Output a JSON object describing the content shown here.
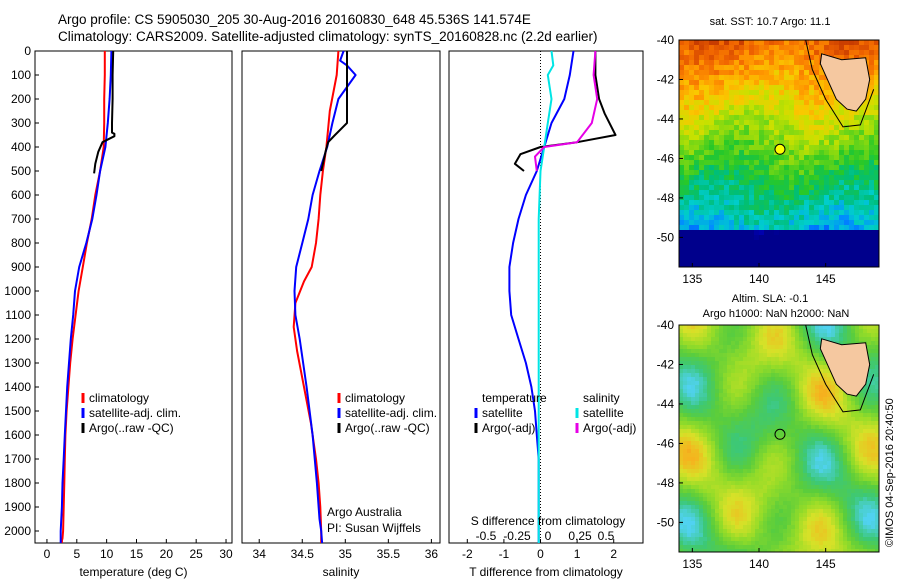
{
  "header": {
    "line1": "Argo profile: CS 5905030_205 30-Aug-2016 20160830_648 45.536S 141.574E",
    "line2": "Climatology: CARS2009. Satellite-adjusted climatology: synTS_20160828.nc (2.2d earlier)"
  },
  "credit": "©IMOS 04-Sep-2016 20:40:50",
  "colors": {
    "climatology": "#ff0000",
    "satellite": "#0000ff",
    "argo": "#000000",
    "salinity_satellite": "#00e5e5",
    "salinity_argo": "#e600e6",
    "land": "#f5c8a0"
  },
  "chart_data": [
    {
      "id": "temperature",
      "type": "line",
      "xlabel": "temperature (deg C)",
      "ylabel": "",
      "xlim": [
        -2,
        31
      ],
      "ylim": [
        2050,
        0
      ],
      "xticks": [
        0,
        5,
        10,
        15,
        20,
        25,
        30
      ],
      "yticks": [
        0,
        100,
        200,
        300,
        400,
        500,
        600,
        700,
        800,
        900,
        1000,
        1100,
        1200,
        1300,
        1400,
        1500,
        1600,
        1700,
        1800,
        1900,
        2000
      ],
      "legend": [
        "climatology",
        "satellite-adj. clim.",
        "Argo(..raw -QC)"
      ],
      "legend_loc": "lower-center",
      "series": [
        {
          "name": "climatology",
          "color": "#ff0000",
          "x": [
            9.7,
            9.7,
            9.6,
            9.6,
            9.5,
            8.9,
            8.1,
            7.5,
            6.7,
            6.0,
            5.3,
            4.8,
            4.3,
            3.9,
            3.6,
            3.3,
            3.1,
            3.0,
            2.9,
            2.8,
            2.7,
            2.6,
            2.5,
            2.5
          ],
          "y": [
            0,
            100,
            200,
            300,
            400,
            500,
            600,
            700,
            800,
            900,
            1000,
            1100,
            1200,
            1300,
            1400,
            1500,
            1600,
            1700,
            1800,
            1900,
            2000,
            2030,
            2040,
            2050
          ]
        },
        {
          "name": "satellite-adj. clim.",
          "color": "#0000ff",
          "x": [
            10.8,
            10.7,
            10.5,
            10.2,
            9.8,
            8.9,
            8.3,
            7.6,
            6.6,
            5.4,
            4.7,
            4.4,
            4.0,
            3.7,
            3.4,
            3.2,
            3.0,
            2.8,
            2.6,
            2.5,
            2.3,
            2.3
          ],
          "y": [
            0,
            100,
            200,
            300,
            400,
            500,
            600,
            700,
            800,
            900,
            1000,
            1100,
            1200,
            1300,
            1400,
            1500,
            1600,
            1700,
            1800,
            1900,
            2000,
            2050
          ]
        },
        {
          "name": "Argo(..raw -QC)",
          "color": "#000000",
          "x": [
            11.1,
            11.0,
            11.0,
            10.9,
            10.9,
            11.3,
            11.3,
            9.3,
            8.6,
            8.1,
            7.9
          ],
          "y": [
            0,
            100,
            200,
            300,
            340,
            345,
            355,
            380,
            420,
            470,
            510
          ]
        }
      ],
      "annotations": []
    },
    {
      "id": "salinity",
      "type": "line",
      "xlabel": "salinity",
      "ylabel": "",
      "xlim": [
        33.8,
        36.1
      ],
      "ylim": [
        2050,
        0
      ],
      "xticks": [
        34,
        34.5,
        35,
        35.5,
        36
      ],
      "legend": [
        "climatology",
        "satellite-adj. clim.",
        "Argo(..raw -QC)"
      ],
      "legend_loc": "lower-right",
      "series": [
        {
          "name": "climatology",
          "color": "#ff0000",
          "x": [
            34.92,
            34.9,
            34.82,
            34.78,
            34.74,
            34.71,
            34.69,
            34.66,
            34.61,
            34.52,
            34.42,
            34.4,
            34.44,
            34.52,
            34.6,
            34.66,
            34.69,
            34.71,
            34.72,
            34.72
          ],
          "y": [
            0,
            100,
            250,
            400,
            500,
            600,
            700,
            800,
            900,
            960,
            1050,
            1150,
            1250,
            1400,
            1550,
            1700,
            1800,
            1900,
            2000,
            2050
          ]
        },
        {
          "name": "satellite-adj. clim.",
          "color": "#0000ff",
          "x": [
            34.98,
            34.94,
            35.02,
            35.12,
            35.02,
            34.92,
            34.85,
            34.79,
            34.7,
            34.62,
            34.57,
            34.5,
            34.43,
            34.41,
            34.42,
            34.47,
            34.55,
            34.62,
            34.67,
            34.7,
            34.72,
            34.73
          ],
          "y": [
            0,
            40,
            60,
            100,
            150,
            200,
            300,
            400,
            500,
            600,
            700,
            800,
            900,
            1000,
            1100,
            1200,
            1400,
            1600,
            1800,
            1950,
            2000,
            2050
          ]
        },
        {
          "name": "Argo(..raw -QC)",
          "color": "#000000",
          "x": [
            35.02,
            35.02,
            35.02,
            35.02,
            34.88,
            34.8,
            34.77,
            34.74,
            34.72
          ],
          "y": [
            0,
            100,
            200,
            300,
            350,
            380,
            420,
            470,
            500
          ]
        }
      ],
      "annotations": [
        "Argo Australia",
        "PI: Susan Wijffels"
      ]
    },
    {
      "id": "difference",
      "type": "line",
      "xlabel": "T difference from climatology",
      "xlabel_top": "S difference from climatology",
      "xlim": [
        -2.5,
        2.8
      ],
      "ylim": [
        2050,
        0
      ],
      "xticks": [
        -2,
        -1,
        0,
        1,
        2
      ],
      "xticks_salinity": [
        "-0.5",
        "-0.25",
        "0",
        "0.25",
        "0.5"
      ],
      "legend_groups": [
        "temperature",
        "salinity"
      ],
      "legend": [
        "satellite",
        "Argo(-adj)",
        "satellite",
        "Argo(-adj)"
      ],
      "legend_loc": "center",
      "series": [
        {
          "name": "satellite",
          "color": "#0000ff",
          "x": [
            0.9,
            0.8,
            0.65,
            0.3,
            0.1,
            -0.1,
            -0.4,
            -0.6,
            -0.75,
            -0.85,
            -0.85,
            -0.8,
            -0.6,
            -0.4,
            -0.25,
            -0.15,
            -0.1,
            -0.05,
            -0.05,
            -0.05
          ],
          "y": [
            0,
            100,
            200,
            300,
            400,
            500,
            600,
            700,
            800,
            900,
            1000,
            1100,
            1200,
            1300,
            1400,
            1500,
            1600,
            1700,
            1850,
            2050
          ]
        },
        {
          "name": "Argo(-adj)",
          "color": "#000000",
          "x": [
            1.5,
            1.5,
            1.6,
            1.75,
            2.05,
            1.0,
            0.0,
            -0.55,
            -0.7,
            -0.45
          ],
          "y": [
            0,
            100,
            200,
            260,
            350,
            380,
            400,
            430,
            470,
            500
          ]
        },
        {
          "name": "satellite",
          "color": "#00e5e5",
          "x": [
            0.3,
            0.35,
            0.2,
            0.3,
            0.2,
            0.1,
            0.0,
            -0.05,
            -0.05,
            -0.05,
            -0.05,
            -0.05
          ],
          "y": [
            0,
            60,
            100,
            200,
            300,
            400,
            500,
            700,
            1000,
            1400,
            1800,
            2050
          ]
        },
        {
          "name": "Argo(-adj)",
          "color": "#e600e6",
          "x": [
            1.5,
            1.45,
            1.55,
            1.4,
            1.0,
            0.1,
            -0.15,
            -0.1
          ],
          "y": [
            0,
            100,
            200,
            300,
            380,
            400,
            440,
            500
          ]
        }
      ],
      "annotations": []
    },
    {
      "id": "sst_map",
      "type": "heatmap",
      "title": "sat. SST: 10.7  Argo: 11.1",
      "xlim": [
        134,
        149
      ],
      "ylim": [
        -51.5,
        -40
      ],
      "xticks": [
        135,
        140,
        145
      ],
      "yticks": [
        -40,
        -42,
        -44,
        -46,
        -48,
        -50
      ],
      "marker": {
        "x": 141.574,
        "y": -45.536,
        "fill": "#ffff00"
      }
    },
    {
      "id": "sla_map",
      "type": "heatmap",
      "title": "Altim. SLA: -0.1",
      "subtitle": "Argo h1000: NaN h2000: NaN",
      "xlim": [
        134,
        149
      ],
      "ylim": [
        -51.5,
        -40
      ],
      "xticks": [
        135,
        140,
        145
      ],
      "yticks": [
        -40,
        -42,
        -44,
        -46,
        -48,
        -50
      ],
      "marker": {
        "x": 141.574,
        "y": -45.536,
        "fill": "none"
      }
    }
  ]
}
